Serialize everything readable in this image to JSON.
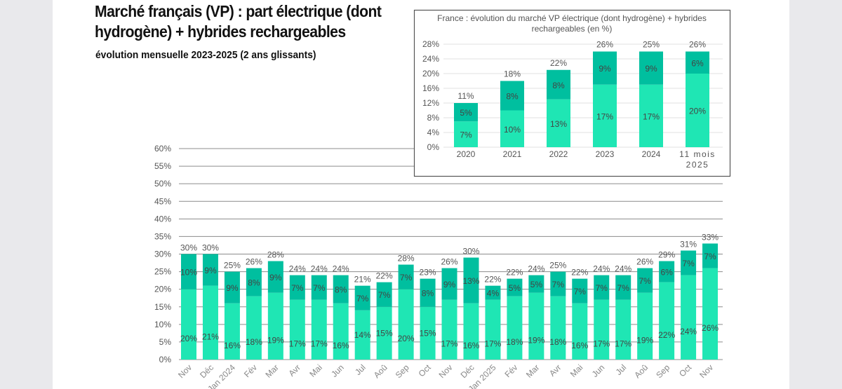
{
  "header": {
    "title": "Marché français (VP) : part électrique (dont hydrogène) + hybrides rechargeables",
    "subtitle": "évolution mensuelle 2023-2025 (2 ans glissants)"
  },
  "colors": {
    "electric": "#1fe6b4",
    "phev": "#00bf9f",
    "label": "#444444",
    "grid": "#8c8c8c"
  },
  "chart_data": [
    {
      "type": "bar",
      "stacked": true,
      "title": "",
      "ylim": [
        0,
        60
      ],
      "yticks": [
        "0%",
        "5%",
        "10%",
        "15%",
        "20%",
        "25%",
        "30%",
        "35%",
        "40%",
        "45%",
        "50%",
        "55%",
        "60%"
      ],
      "grid": true,
      "categories": [
        "Nov",
        "Déc",
        "Jan 2024",
        "Fév",
        "Mar",
        "Avr",
        "Mai",
        "Jun",
        "Jul",
        "Aoû",
        "Sep",
        "Oct",
        "Nov",
        "Déc",
        "Jan 2025",
        "Fév",
        "Mar",
        "Avr",
        "Mai",
        "Jun",
        "Jul",
        "Aoû",
        "Sep",
        "Oct",
        "Nov"
      ],
      "series": [
        {
          "values": [
            20,
            21,
            16,
            18,
            19,
            17,
            17,
            16,
            14,
            15,
            20,
            15,
            17,
            16,
            17,
            18,
            19,
            18,
            16,
            17,
            17,
            19,
            22,
            24,
            26
          ]
        },
        {
          "values": [
            10,
            9,
            9,
            8,
            9,
            7,
            7,
            8,
            7,
            7,
            7,
            8,
            9,
            13,
            4,
            5,
            5,
            7,
            7,
            7,
            7,
            7,
            6,
            7,
            7
          ]
        }
      ],
      "totals": [
        30,
        30,
        25,
        26,
        28,
        24,
        24,
        24,
        21,
        22,
        28,
        23,
        26,
        30,
        22,
        22,
        24,
        25,
        22,
        24,
        24,
        26,
        29,
        31,
        33
      ]
    },
    {
      "type": "bar",
      "stacked": true,
      "title": "France : évolution du marché VP électrique (dont hydrogène) + hybrides rechargeables (en %)",
      "ylim": [
        0,
        28
      ],
      "yticks": [
        "0%",
        "4%",
        "8%",
        "12%",
        "16%",
        "20%",
        "24%",
        "28%"
      ],
      "grid": true,
      "categories": [
        "2020",
        "2021",
        "2022",
        "2023",
        "2024",
        "11 mois 2025"
      ],
      "series": [
        {
          "values": [
            7,
            10,
            13,
            17,
            17,
            20
          ]
        },
        {
          "values": [
            5,
            8,
            8,
            9,
            9,
            6
          ]
        }
      ],
      "totals": [
        11,
        18,
        22,
        26,
        25,
        26
      ]
    }
  ]
}
